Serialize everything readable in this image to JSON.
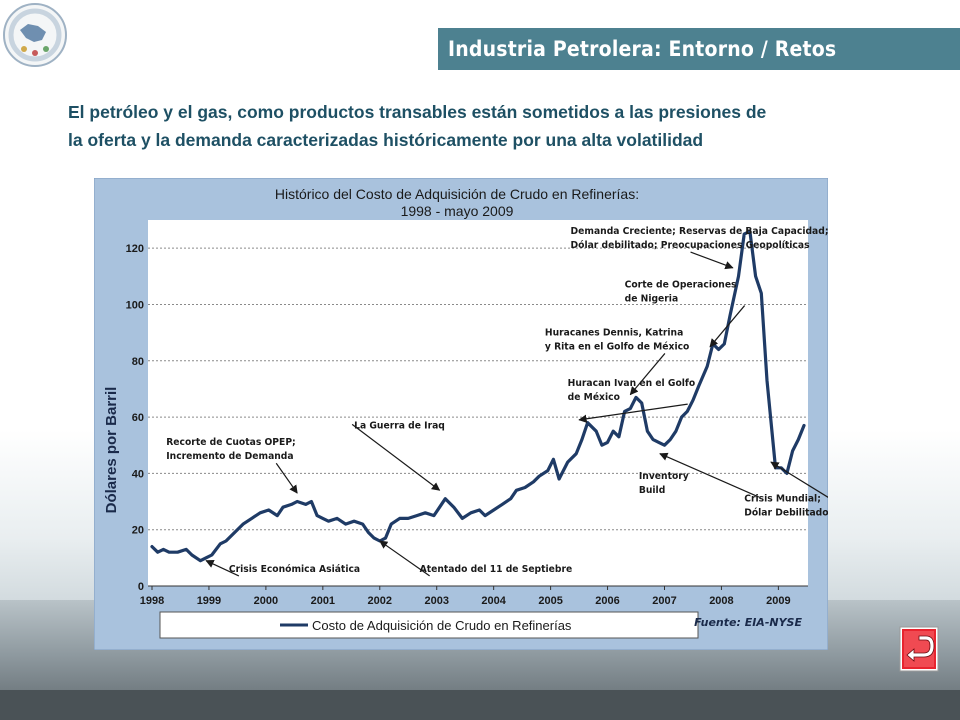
{
  "header": {
    "title": "Industria Petrolera: Entorno / Retos"
  },
  "intro": {
    "line1": "El petróleo y el gas, como productos transables están sometidos a las presiones de",
    "line2": "la oferta y la demanda caracterizadas históricamente por una alta volatilidad"
  },
  "colors": {
    "title_bar": "#4d8190",
    "intro_text": "#1e5064",
    "chart_panel": "#a9c2dd",
    "plot_area": "#ffffff",
    "series_line": "#1f3b66",
    "return_button": "#e8242f"
  },
  "icons": {
    "logo": "seal-logo-icon",
    "return": "return-arrow-icon"
  },
  "chart_data": {
    "type": "line",
    "title": "Histórico del Costo de Adquisición de Crudo en  Refinerías:",
    "subtitle": "1998 - mayo 2009",
    "ylabel": "Dólares por Barril",
    "xlabel": "",
    "xlim": [
      1998,
      2009.45
    ],
    "ylim": [
      0,
      130
    ],
    "yticks": [
      0,
      20,
      40,
      60,
      80,
      100,
      120
    ],
    "xticks": [
      1998,
      1999,
      2000,
      2001,
      2002,
      2003,
      2004,
      2005,
      2006,
      2007,
      2008,
      2009
    ],
    "grid": "horizontal dotted",
    "legend": "bottom",
    "source": "Fuente: EIA-NYSE",
    "series": [
      {
        "name": "Costo de Adquisición de Crudo en Refinerías",
        "x": [
          1998.0,
          1998.1,
          1998.2,
          1998.3,
          1998.45,
          1998.6,
          1998.7,
          1998.85,
          1998.95,
          1999.05,
          1999.2,
          1999.3,
          1999.45,
          1999.6,
          1999.75,
          1999.9,
          2000.05,
          2000.2,
          2000.3,
          2000.45,
          2000.55,
          2000.7,
          2000.8,
          2000.9,
          2001.0,
          2001.1,
          2001.25,
          2001.4,
          2001.55,
          2001.7,
          2001.8,
          2001.9,
          2002.0,
          2002.1,
          2002.2,
          2002.35,
          2002.5,
          2002.65,
          2002.8,
          2002.95,
          2003.05,
          2003.15,
          2003.3,
          2003.45,
          2003.6,
          2003.75,
          2003.85,
          2004.0,
          2004.15,
          2004.3,
          2004.4,
          2004.55,
          2004.7,
          2004.8,
          2004.95,
          2005.05,
          2005.15,
          2005.3,
          2005.45,
          2005.55,
          2005.65,
          2005.8,
          2005.9,
          2006.0,
          2006.1,
          2006.2,
          2006.3,
          2006.4,
          2006.5,
          2006.6,
          2006.7,
          2006.8,
          2006.9,
          2007.0,
          2007.1,
          2007.2,
          2007.3,
          2007.4,
          2007.5,
          2007.6,
          2007.75,
          2007.85,
          2007.95,
          2008.05,
          2008.15,
          2008.3,
          2008.4,
          2008.5,
          2008.6,
          2008.7,
          2008.8,
          2008.95,
          2009.05,
          2009.15,
          2009.25,
          2009.35,
          2009.45
        ],
        "y": [
          14,
          12,
          13,
          12,
          12,
          13,
          11,
          9,
          10,
          11,
          15,
          16,
          19,
          22,
          24,
          26,
          27,
          25,
          28,
          29,
          30,
          29,
          30,
          25,
          24,
          23,
          24,
          22,
          23,
          22,
          19,
          17,
          16,
          17,
          22,
          24,
          24,
          25,
          26,
          25,
          28,
          31,
          28,
          24,
          26,
          27,
          25,
          27,
          29,
          31,
          34,
          35,
          37,
          39,
          41,
          45,
          38,
          44,
          47,
          52,
          58,
          55,
          50,
          51,
          55,
          53,
          62,
          63,
          67,
          65,
          55,
          52,
          51,
          50,
          52,
          55,
          60,
          62,
          66,
          71,
          78,
          86,
          84,
          86,
          96,
          110,
          125,
          126,
          110,
          104,
          73,
          42,
          42,
          40,
          48,
          52,
          57
        ]
      }
    ],
    "annotations": [
      {
        "text": "Demanda Creciente; Reservas de Baja Capacidad;",
        "text2": "Dólar debilitado; Preocupaciones Geopolíticas",
        "tx": 2005.35,
        "ty": 125,
        "ax": 2008.2,
        "ay": 113
      },
      {
        "text": "Corte de Operaciones",
        "text2": "de  Nigeria",
        "tx": 2006.3,
        "ty": 106,
        "ax": 2007.8,
        "ay": 85
      },
      {
        "text": "Huracanes Dennis, Katrina",
        "text2": "y Rita en el Golfo de México",
        "tx": 2004.9,
        "ty": 89,
        "ax": 2006.4,
        "ay": 68
      },
      {
        "text": "Huracan Ivan en el Golfo",
        "text2": "de México",
        "tx": 2005.3,
        "ty": 71,
        "ax": 2005.5,
        "ay": 59
      },
      {
        "text": "La Guerra de Iraq",
        "text2": "",
        "tx": 2001.55,
        "ty": 56,
        "ax": 2003.05,
        "ay": 34
      },
      {
        "text": "Recorte de Cuotas OPEP;",
        "text2": "Incremento de Demanda",
        "tx": 1998.25,
        "ty": 50,
        "ax": 2000.55,
        "ay": 33
      },
      {
        "text": "Inventory",
        "text2": "Build",
        "tx": 2006.55,
        "ty": 38,
        "ax": 2006.92,
        "ay": 47
      },
      {
        "text": "Crisis Mundial;",
        "text2": "Dólar Debilitado",
        "tx": 2008.4,
        "ty": 30,
        "ax": 2008.87,
        "ay": 44
      },
      {
        "text": "Crisis Económica Asiática",
        "text2": "",
        "tx": 1999.35,
        "ty": 5,
        "ax": 1998.95,
        "ay": 9
      },
      {
        "text": "Atentado del 11 de Septiebre",
        "text2": "",
        "tx": 2002.7,
        "ty": 5,
        "ax": 2002.0,
        "ay": 16
      }
    ]
  }
}
